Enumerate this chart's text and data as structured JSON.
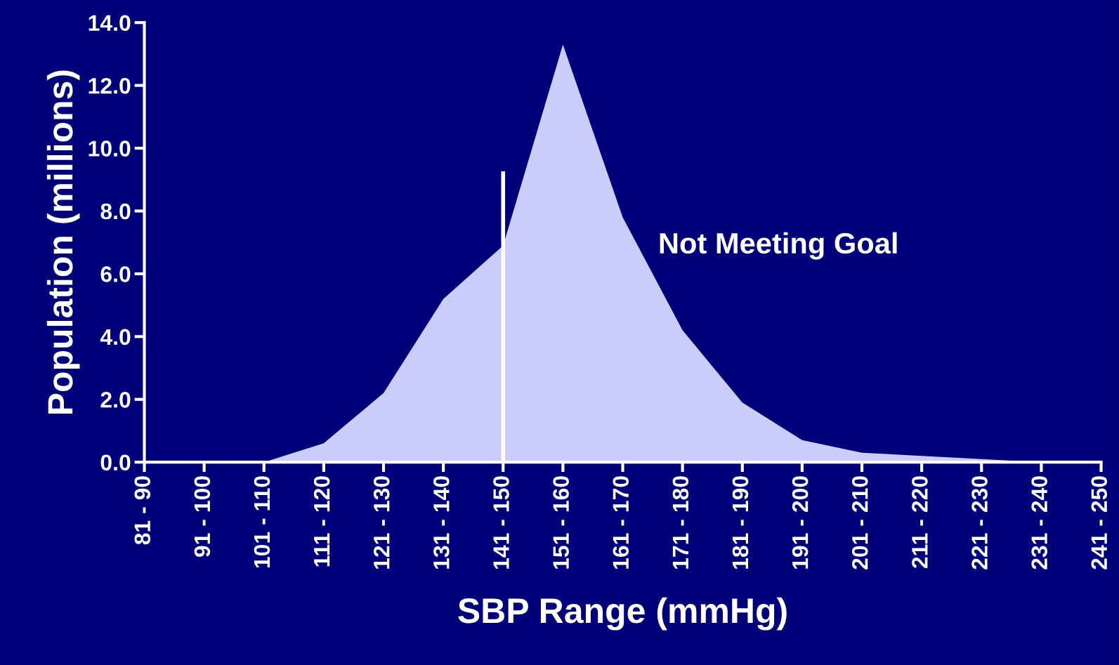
{
  "chart_data": {
    "type": "area",
    "xlabel": "SBP Range (mmHg)",
    "ylabel": "Population (millions)",
    "categories": [
      "81 - 90",
      "91 - 100",
      "101 - 110",
      "111 - 120",
      "121 - 130",
      "131 - 140",
      "141 - 150",
      "151 - 160",
      "161 - 170",
      "171 - 180",
      "181 - 190",
      "191 - 200",
      "201 - 210",
      "211 - 220",
      "221 - 230",
      "231 - 240",
      "241 - 250"
    ],
    "series": [
      {
        "color": "#ccccfa",
        "values": [
          0,
          0,
          0,
          0.6,
          2.2,
          5.2,
          6.9,
          13.3,
          7.8,
          4.2,
          1.9,
          0.7,
          0.3,
          0.2,
          0.1,
          0,
          0
        ]
      },
      {
        "type": "line",
        "color": "#ffffff",
        "x": [
          "141 - 150",
          "141 - 150"
        ],
        "values": [
          0,
          9.2
        ]
      }
    ],
    "ylim": [
      0,
      14
    ],
    "yticks": [
      {
        "value": 0,
        "label": "0.0"
      },
      {
        "value": 2,
        "label": "2.0"
      },
      {
        "value": 4,
        "label": "4.0"
      },
      {
        "value": 6,
        "label": "6.0"
      },
      {
        "value": 8,
        "label": "8.0"
      },
      {
        "value": 10,
        "label": "10.0"
      },
      {
        "value": 12,
        "label": "12.0"
      },
      {
        "value": 14,
        "label": "14.0"
      }
    ],
    "annotations": [
      "Not Meeting Goal"
    ],
    "grid": false
  }
}
